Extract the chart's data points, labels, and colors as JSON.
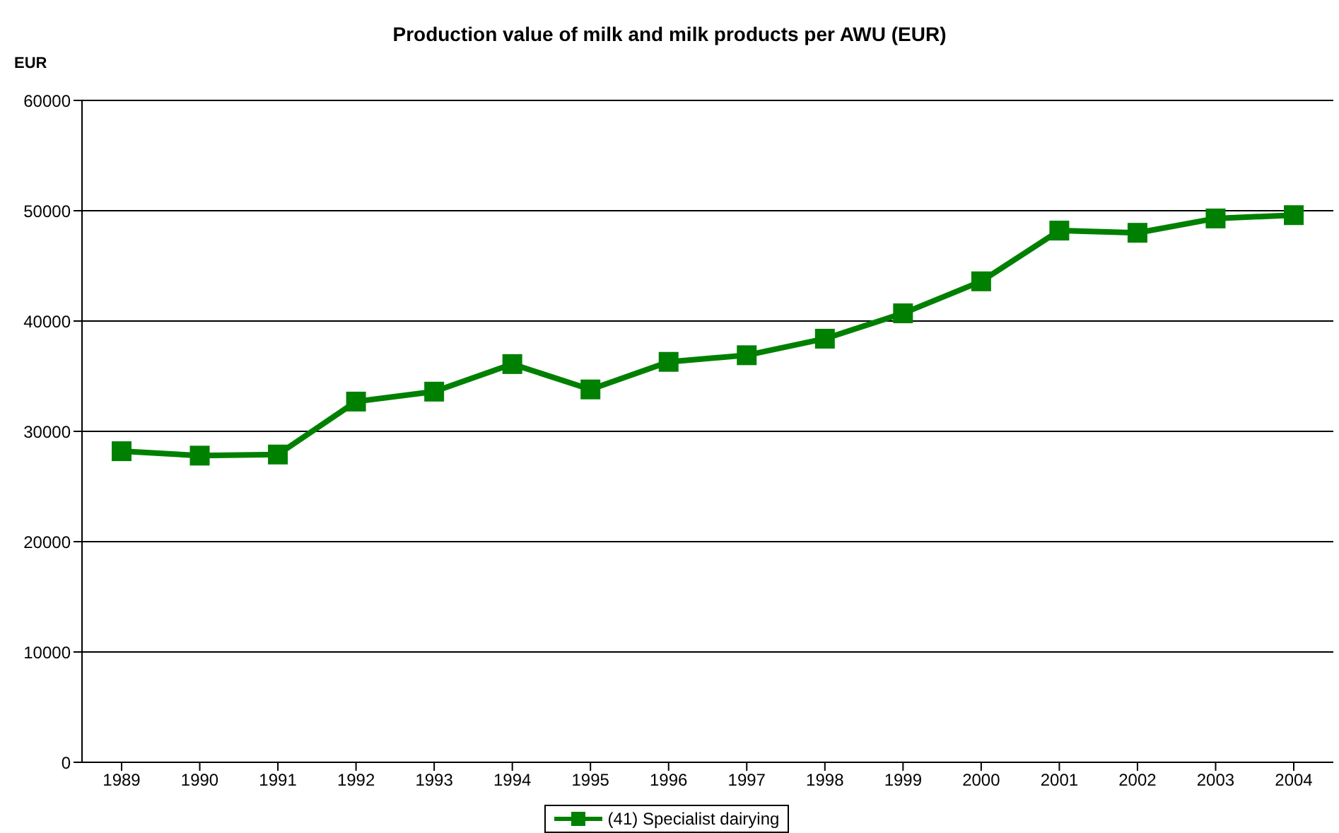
{
  "chart_data": {
    "type": "line",
    "title": "Production value of milk and milk products per AWU (EUR)",
    "ylabel": "EUR",
    "categories": [
      "1989",
      "1990",
      "1991",
      "1992",
      "1993",
      "1994",
      "1995",
      "1996",
      "1997",
      "1998",
      "1999",
      "2000",
      "2001",
      "2002",
      "2003",
      "2004"
    ],
    "series": [
      {
        "name": "(41) Specialist dairying",
        "color": "#008000",
        "values": [
          28200,
          27800,
          27900,
          32700,
          33600,
          36100,
          33800,
          36300,
          36900,
          38400,
          40700,
          43600,
          48200,
          48000,
          49300,
          49600
        ]
      }
    ],
    "ylim": [
      0,
      60000
    ],
    "yticks": [
      0,
      10000,
      20000,
      30000,
      40000,
      50000,
      60000
    ],
    "grid": "y",
    "legend": "bottom",
    "marker": "square",
    "line_style": "solid"
  }
}
